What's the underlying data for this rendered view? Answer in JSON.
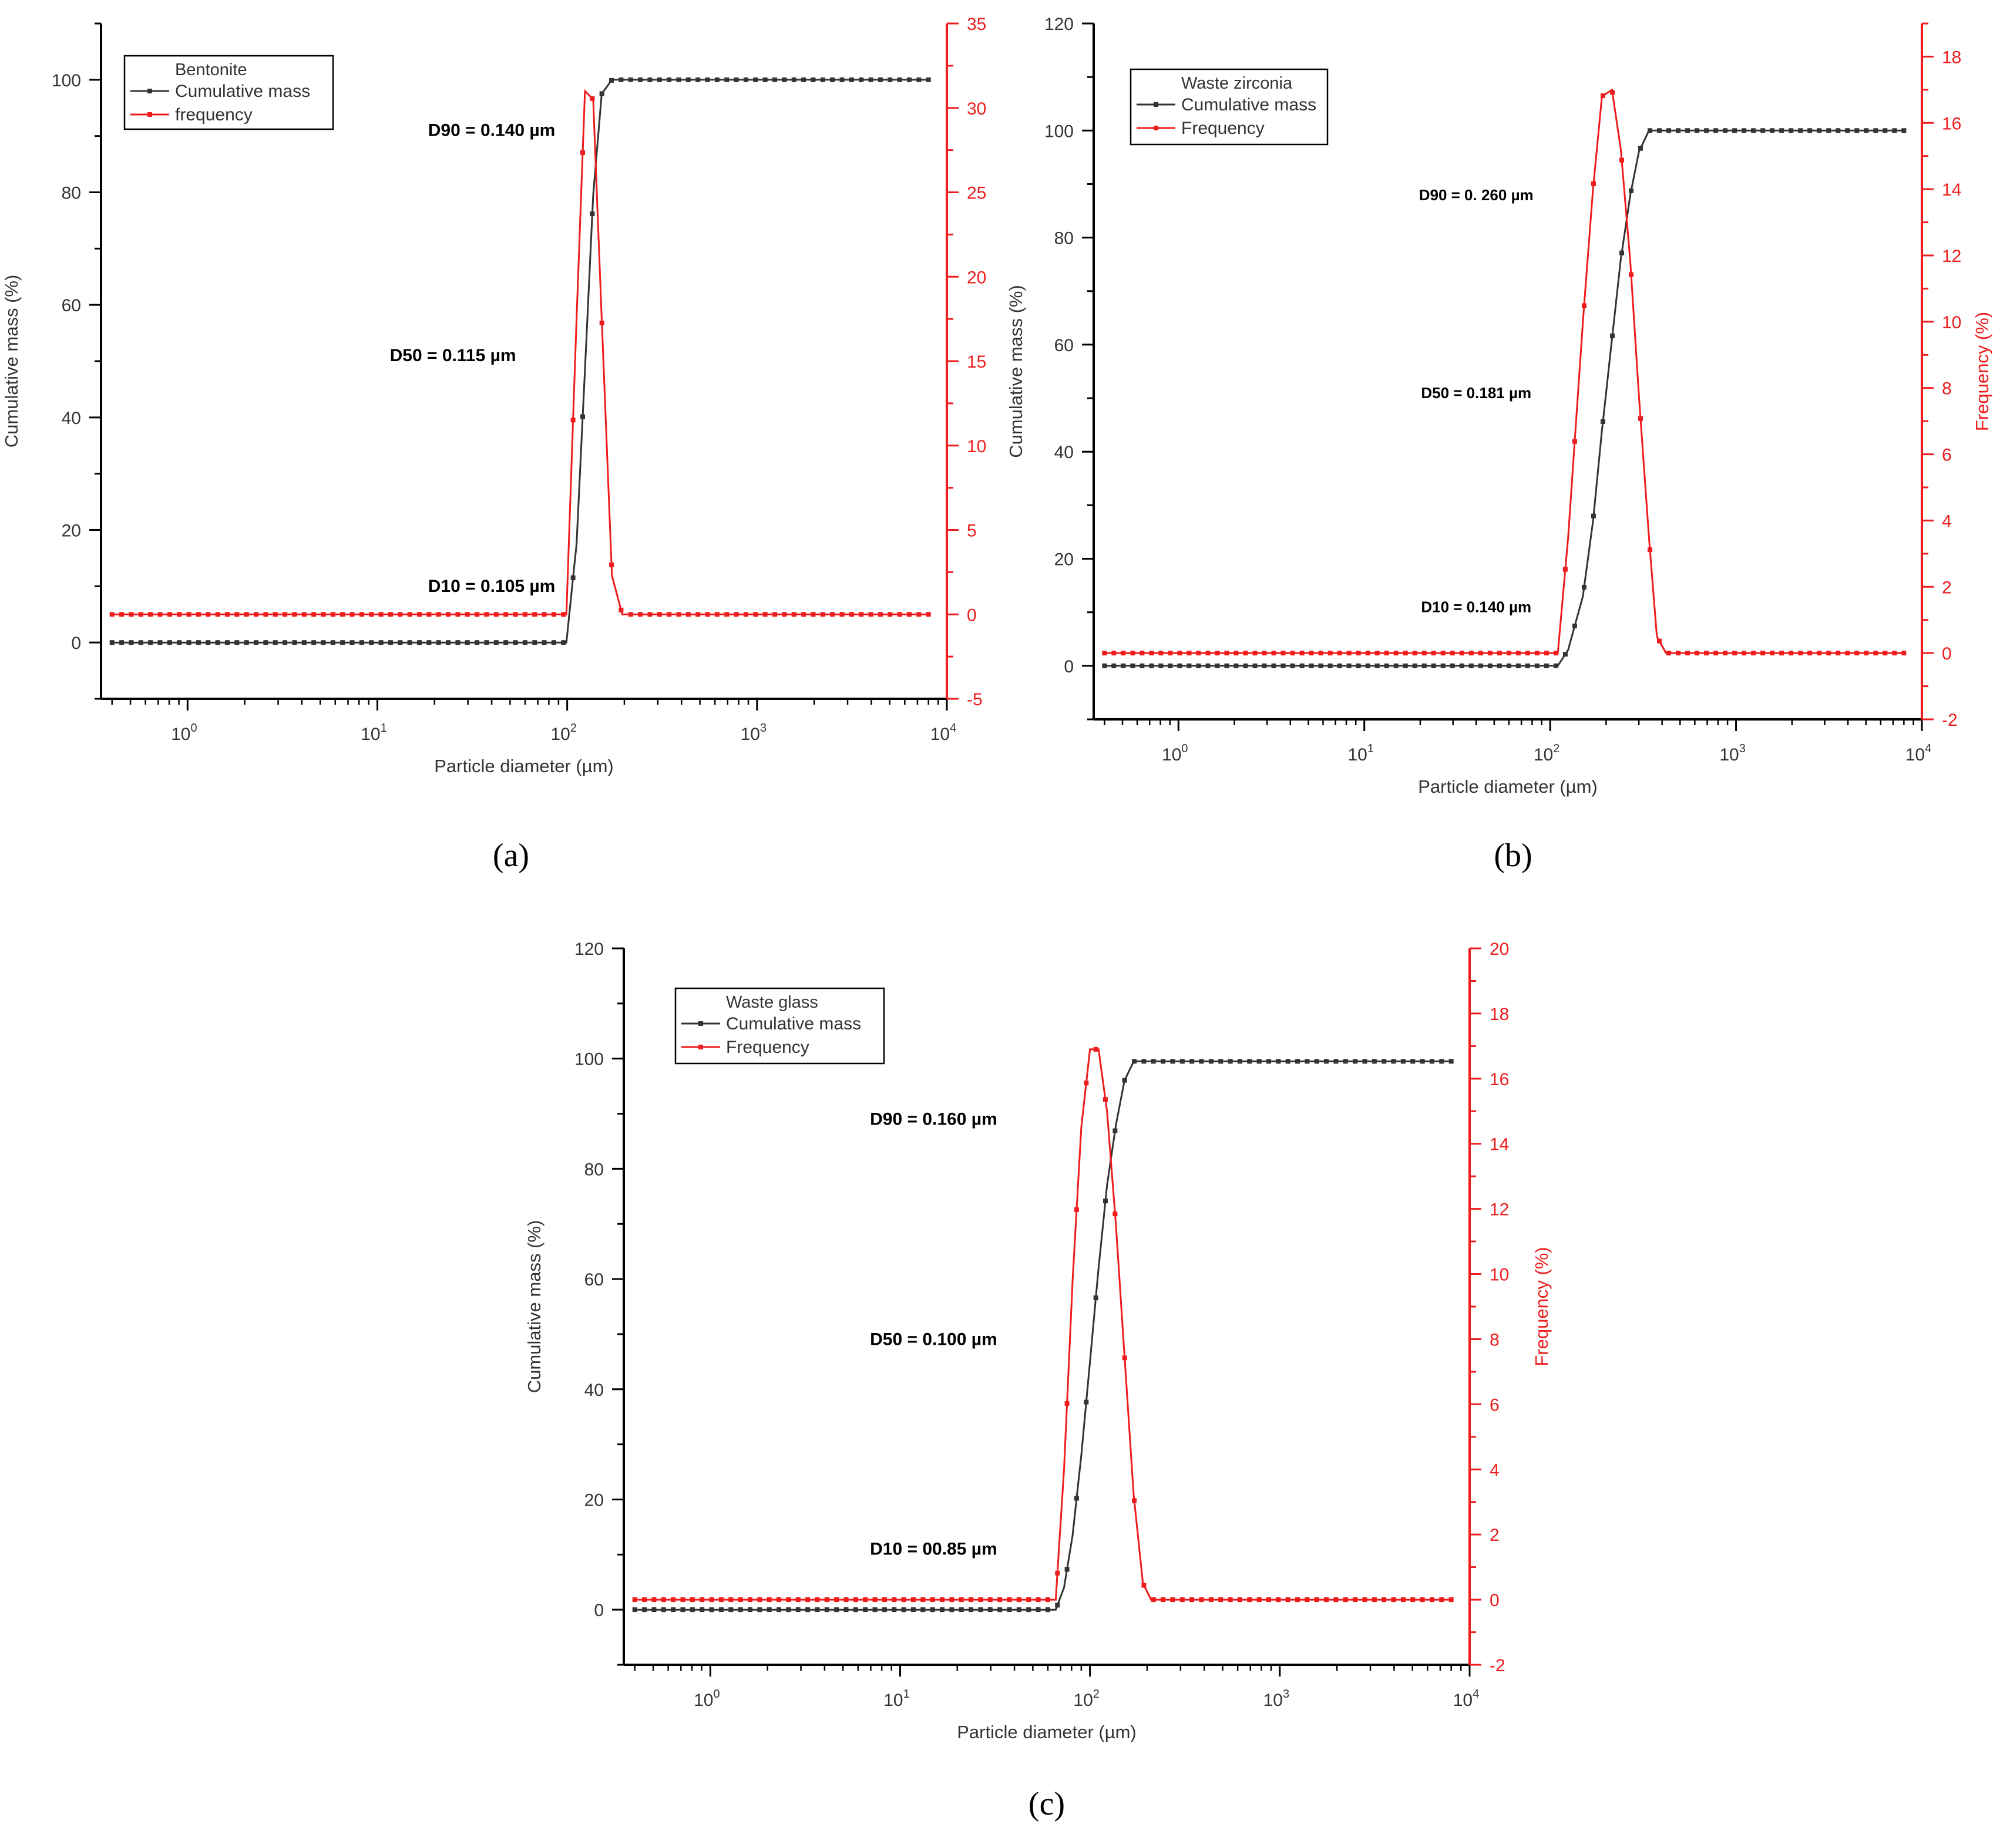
{
  "figure": {
    "captions": [
      "(a)",
      "(b)",
      "(c)"
    ],
    "colors": {
      "cumulative": "#333333",
      "frequency": "#ee1c1c",
      "axis": "#000000",
      "text": "#333333"
    }
  },
  "chart_data": [
    {
      "id": "a",
      "type": "line",
      "title": "",
      "xlabel": "Particle diameter (µm)",
      "ylabel": "Cumulative mass (%)",
      "y2label": "",
      "xscale": "log",
      "xlim": [
        0.35,
        10000
      ],
      "ylim": [
        -10,
        110
      ],
      "y2lim": [
        -5,
        35
      ],
      "xticks": [
        {
          "v": 1,
          "base": "10",
          "exp": "0"
        },
        {
          "v": 10,
          "base": "10",
          "exp": "1"
        },
        {
          "v": 100,
          "base": "10",
          "exp": "2"
        },
        {
          "v": 1000,
          "base": "10",
          "exp": "3"
        },
        {
          "v": 10000,
          "base": "10",
          "exp": "4"
        }
      ],
      "yticks": [
        0,
        20,
        40,
        60,
        80,
        100
      ],
      "y2ticks": [
        -5,
        0,
        5,
        10,
        15,
        20,
        25,
        30,
        35
      ],
      "legend": {
        "title": "Bentonite",
        "placement": "top-left",
        "entries": [
          "Cumulative mass",
          "frequency"
        ]
      },
      "annotations": [
        {
          "text": "D90 =  0.140 µm",
          "x": 40,
          "y": 90
        },
        {
          "text": "D50 =  0.115 µm",
          "x": 25,
          "y": 50
        },
        {
          "text": "D10 =  0.105  µm",
          "x": 40,
          "y": 9
        }
      ],
      "series": [
        {
          "name": "Cumulative mass",
          "axis": "left",
          "x_from": 0.4,
          "x_to": 8000,
          "n": 86,
          "profile": [
            [
              0.4,
              0
            ],
            [
              99,
              0
            ],
            [
              112,
              17.5
            ],
            [
              124,
              48.5
            ],
            [
              137,
              79.5
            ],
            [
              152,
              97.5
            ],
            [
              172,
              100
            ],
            [
              8000,
              100
            ]
          ]
        },
        {
          "name": "frequency",
          "axis": "right",
          "x_from": 0.4,
          "x_to": 8000,
          "n": 86,
          "profile": [
            [
              0.4,
              0
            ],
            [
              99,
              0
            ],
            [
              112,
              17.5
            ],
            [
              124,
              31
            ],
            [
              137,
              30.5
            ],
            [
              152,
              17.5
            ],
            [
              172,
              2.3
            ],
            [
              195,
              0
            ],
            [
              8000,
              0
            ]
          ]
        }
      ]
    },
    {
      "id": "b",
      "type": "line",
      "title": "",
      "xlabel": "Particle diameter (µm)",
      "ylabel": "Cumulative mass (%)",
      "y2label": "Frequency (%)",
      "xscale": "log",
      "xlim": [
        0.35,
        10000
      ],
      "ylim": [
        -10,
        120
      ],
      "y2lim": [
        -2,
        19
      ],
      "xticks": [
        {
          "v": 1,
          "base": "10",
          "exp": "0"
        },
        {
          "v": 10,
          "base": "10",
          "exp": "1"
        },
        {
          "v": 100,
          "base": "10",
          "exp": "2"
        },
        {
          "v": 1000,
          "base": "10",
          "exp": "3"
        },
        {
          "v": 10000,
          "base": "10",
          "exp": "4"
        }
      ],
      "yticks": [
        0,
        20,
        40,
        60,
        80,
        100,
        120
      ],
      "y2ticks": [
        -2,
        0,
        2,
        4,
        6,
        8,
        10,
        12,
        14,
        16,
        18
      ],
      "legend": {
        "title": "Waste zirconia",
        "placement": "top-left",
        "entries": [
          "Cumulative mass",
          "Frequency"
        ]
      },
      "annotations": [
        {
          "text": "D90 =  0. 260 µm",
          "x": 40,
          "y": 87
        },
        {
          "text": "D50 = 0.181 µm",
          "x": 40,
          "y": 50
        },
        {
          "text": "D10 = 0.140 µm",
          "x": 40,
          "y": 10
        }
      ],
      "series": [
        {
          "name": "Cumulative mass",
          "axis": "left",
          "x_from": 0.4,
          "x_to": 8000,
          "n": 86,
          "profile": [
            [
              0.4,
              0
            ],
            [
              110,
              0
            ],
            [
              125,
              3
            ],
            [
              150,
              13
            ],
            [
              170,
              27
            ],
            [
              190,
              44
            ],
            [
              215,
              61
            ],
            [
              240,
              76
            ],
            [
              270,
              88
            ],
            [
              300,
              96
            ],
            [
              340,
              100
            ],
            [
              8000,
              100
            ]
          ]
        },
        {
          "name": "Frequency",
          "axis": "right",
          "x_from": 0.4,
          "x_to": 8000,
          "n": 86,
          "profile": [
            [
              0.4,
              0
            ],
            [
              110,
              0
            ],
            [
              125,
              3.5
            ],
            [
              150,
              10
            ],
            [
              170,
              14
            ],
            [
              190,
              16.8
            ],
            [
              215,
              17
            ],
            [
              240,
              15.2
            ],
            [
              270,
              11.8
            ],
            [
              300,
              7.8
            ],
            [
              340,
              3.5
            ],
            [
              375,
              0.5
            ],
            [
              420,
              0
            ],
            [
              8000,
              0
            ]
          ]
        }
      ]
    },
    {
      "id": "c",
      "type": "line",
      "title": "",
      "xlabel": "Particle diameter (µm)",
      "ylabel": "Cumulative mass (%)",
      "y2label": "Frequency (%)",
      "xscale": "log",
      "xlim": [
        0.35,
        10000
      ],
      "ylim": [
        -10,
        120
      ],
      "y2lim": [
        -2,
        20
      ],
      "xticks": [
        {
          "v": 1,
          "base": "10",
          "exp": "0"
        },
        {
          "v": 10,
          "base": "10",
          "exp": "1"
        },
        {
          "v": 100,
          "base": "10",
          "exp": "2"
        },
        {
          "v": 1000,
          "base": "10",
          "exp": "3"
        },
        {
          "v": 10000,
          "base": "10",
          "exp": "4"
        }
      ],
      "yticks": [
        0,
        20,
        40,
        60,
        80,
        100,
        120
      ],
      "y2ticks": [
        -2,
        0,
        2,
        4,
        6,
        8,
        10,
        12,
        14,
        16,
        18,
        20
      ],
      "legend": {
        "title": "Waste glass",
        "placement": "top-left",
        "entries": [
          "Cumulative mass",
          "Frequency"
        ]
      },
      "annotations": [
        {
          "text": "D90 = 0.160 µm",
          "x": 15,
          "y": 88
        },
        {
          "text": "D50 = 0.100 µm",
          "x": 15,
          "y": 48
        },
        {
          "text": "D10 = 00.85 µm",
          "x": 15,
          "y": 10
        }
      ],
      "series": [
        {
          "name": "Cumulative mass",
          "axis": "left",
          "x_from": 0.4,
          "x_to": 8000,
          "n": 86,
          "profile": [
            [
              0.4,
              0
            ],
            [
              66,
              0
            ],
            [
              73,
              4
            ],
            [
              81,
              13.5
            ],
            [
              90,
              28
            ],
            [
              100,
              45
            ],
            [
              111,
              62
            ],
            [
              123,
              77
            ],
            [
              137,
              88
            ],
            [
              152,
              96
            ],
            [
              170,
              99.5
            ],
            [
              8000,
              99.5
            ]
          ]
        },
        {
          "name": "Frequency",
          "axis": "right",
          "x_from": 0.4,
          "x_to": 8000,
          "n": 86,
          "profile": [
            [
              0.4,
              0
            ],
            [
              66,
              0
            ],
            [
              73,
              4
            ],
            [
              81,
              9.8
            ],
            [
              90,
              14.5
            ],
            [
              100,
              16.9
            ],
            [
              111,
              16.9
            ],
            [
              123,
              15
            ],
            [
              137,
              11.5
            ],
            [
              152,
              7.5
            ],
            [
              170,
              3.2
            ],
            [
              190,
              0.5
            ],
            [
              210,
              0
            ],
            [
              8000,
              0
            ]
          ]
        }
      ]
    }
  ]
}
